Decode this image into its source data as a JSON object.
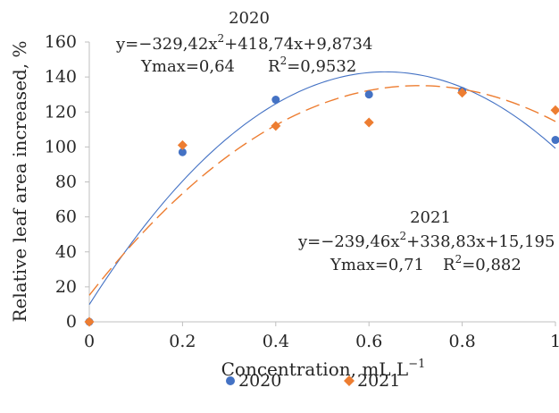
{
  "chart_data": {
    "type": "scatter",
    "title": "",
    "xlabel": "Concentration, mL L",
    "xlabel_exponent": "−1",
    "ylabel": "Relative leaf area increased, %",
    "xlim": [
      0,
      1
    ],
    "ylim": [
      0,
      160
    ],
    "x_ticks": [
      "0",
      "0.2",
      "0.4",
      "0.6",
      "0.8",
      "1"
    ],
    "y_ticks": [
      "0",
      "20",
      "40",
      "60",
      "80",
      "100",
      "120",
      "140",
      "160"
    ],
    "grid": false,
    "legend_position": "bottom",
    "series": [
      {
        "name": "2020",
        "marker": "circle",
        "color": "#4472C4",
        "x": [
          0,
          0.2,
          0.4,
          0.6,
          0.8,
          1.0
        ],
        "y": [
          0,
          97,
          127,
          130,
          132,
          104
        ],
        "trendline": {
          "kind": "polynomial",
          "style": "solid",
          "coefficients": {
            "a": -329.42,
            "b": 418.74,
            "c": 9.8734
          },
          "label_year": "2020",
          "equation": "y=−329,42x",
          "equation_rest": "+418,74x+9,8734",
          "ymax_text": "Ymax=0,64",
          "r2_value": "=0,9532"
        }
      },
      {
        "name": "2021",
        "marker": "diamond",
        "color": "#ED7D31",
        "x": [
          0,
          0.2,
          0.4,
          0.6,
          0.8,
          1.0
        ],
        "y": [
          0,
          101,
          112,
          114,
          131,
          121
        ],
        "trendline": {
          "kind": "polynomial",
          "style": "dashed",
          "coefficients": {
            "a": -239.46,
            "b": 338.83,
            "c": 15.195
          },
          "label_year": "2021",
          "equation": "y=−239,46x",
          "equation_rest": "+338,83x+15,195",
          "ymax_text": "Ymax=0,71",
          "r2_value": "=0,882"
        }
      }
    ]
  },
  "colors": {
    "series_2020": "#4472C4",
    "series_2021": "#ED7D31",
    "axis": "#bfbfbf",
    "text": "#262626"
  }
}
